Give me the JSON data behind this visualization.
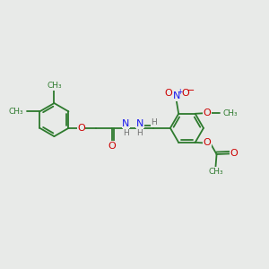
{
  "bg_color": "#e8eae8",
  "bond_color": "#2d7a2d",
  "bond_lw": 1.3,
  "double_sep": 0.055,
  "colors": {
    "C": "#2d7a2d",
    "O": "#cc0000",
    "N": "#1a1aee",
    "H": "#707070"
  },
  "fs": 8.0,
  "sfs": 6.5,
  "figsize": [
    3.0,
    3.0
  ],
  "dpi": 100,
  "xlim": [
    0,
    10
  ],
  "ylim": [
    0,
    10
  ]
}
